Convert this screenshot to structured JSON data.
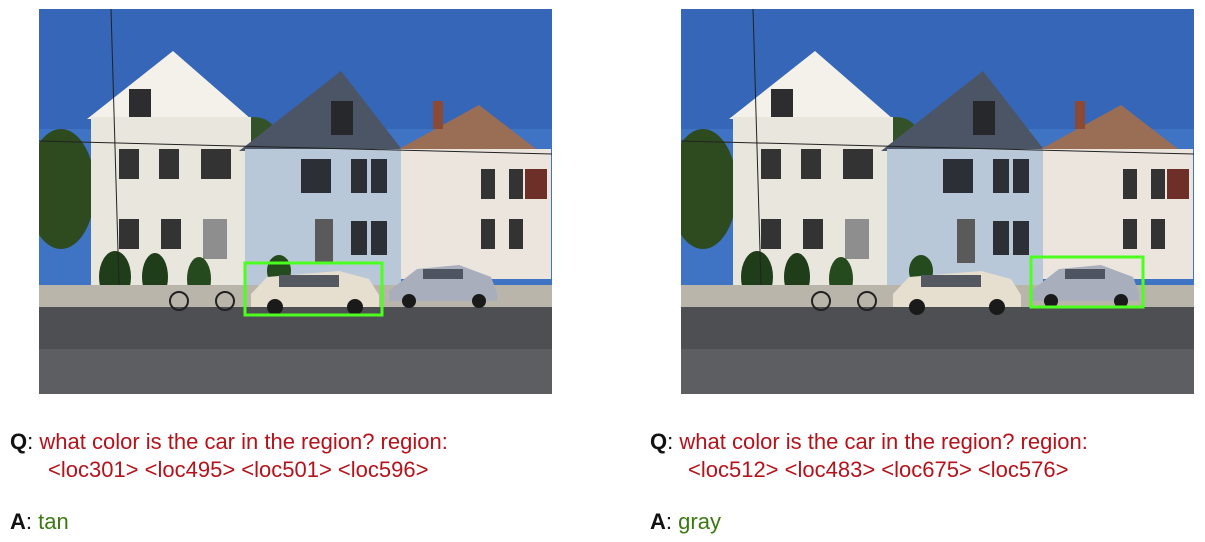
{
  "panels": [
    {
      "question_label": "Q",
      "question_line1": "what color is the car in the region? region:",
      "question_line2": "<loc301> <loc495> <loc501> <loc596>",
      "answer_label": "A",
      "answer": "tan",
      "box_color": "#4cff1f"
    },
    {
      "question_label": "Q",
      "question_line1": "what color is the car in the region? region:",
      "question_line2": "<loc512> <loc483> <loc675> <loc576>",
      "answer_label": "A",
      "answer": "gray",
      "box_color": "#4cff1f"
    }
  ],
  "colors": {
    "question_text": "#b5121b",
    "answer_text": "#3a7a11",
    "label_text": "#111111"
  }
}
